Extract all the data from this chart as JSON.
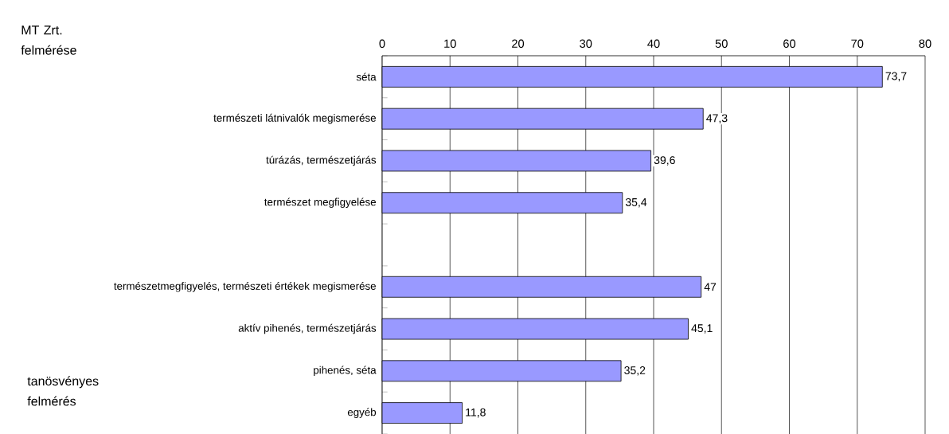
{
  "chart_data": {
    "type": "bar",
    "orientation": "horizontal",
    "categories": [
      "séta",
      "természeti látnivalók megismerése",
      "túrázás, természetjárás",
      "természet megfigyelése",
      null,
      "természetmegfigyelés, természeti értékek megismerése",
      "aktív pihenés, természetjárás",
      "pihenés, séta",
      "egyéb"
    ],
    "values": [
      73.7,
      47.3,
      39.6,
      35.4,
      null,
      47,
      45.1,
      35.2,
      11.8
    ],
    "value_labels": [
      "73,7",
      "47,3",
      "39,6",
      "35,4",
      null,
      "47",
      "45,1",
      "35,2",
      "11,8"
    ],
    "color": "#9999ff",
    "xlim": [
      0,
      80
    ],
    "xticks": [
      0,
      10,
      20,
      30,
      40,
      50,
      60,
      70,
      80
    ],
    "grid": "x",
    "annotations": [
      "MT Zrt. felmérése",
      "tanösvényes felmérés"
    ]
  }
}
